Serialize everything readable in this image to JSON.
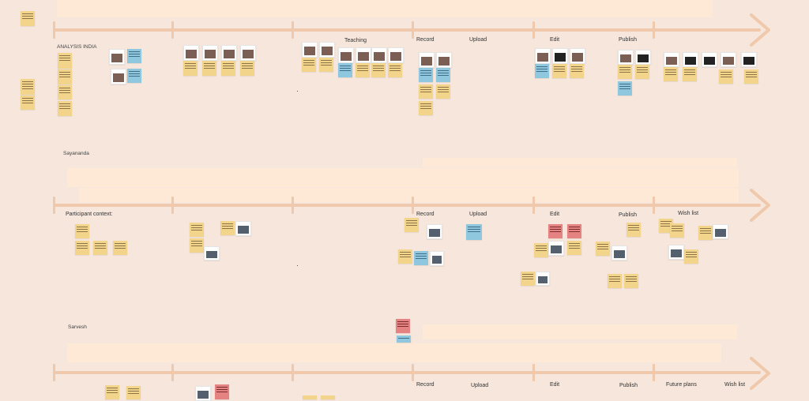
{
  "sections": [
    {
      "title": "ANALYSIS INDIA",
      "stages": [
        "Teaching",
        "Record",
        "Upload",
        "Edit",
        "Publish"
      ]
    },
    {
      "title": "Sayananda",
      "context_label": "Participant context:",
      "stages": [
        "Record",
        "Upload",
        "Edit",
        "Publish",
        "Wish list"
      ]
    },
    {
      "title": "Sarvesh",
      "stages": [
        "Record",
        "Upload",
        "Edit",
        "Publish",
        "Future plans",
        "Wish list"
      ]
    }
  ],
  "colors": {
    "background": "#f6e6dc",
    "band": "#fde9d6",
    "arrow": "#f0c9ac",
    "sticky_yellow": "#f2d58b",
    "sticky_blue": "#8fc7df",
    "sticky_red": "#e58383"
  }
}
